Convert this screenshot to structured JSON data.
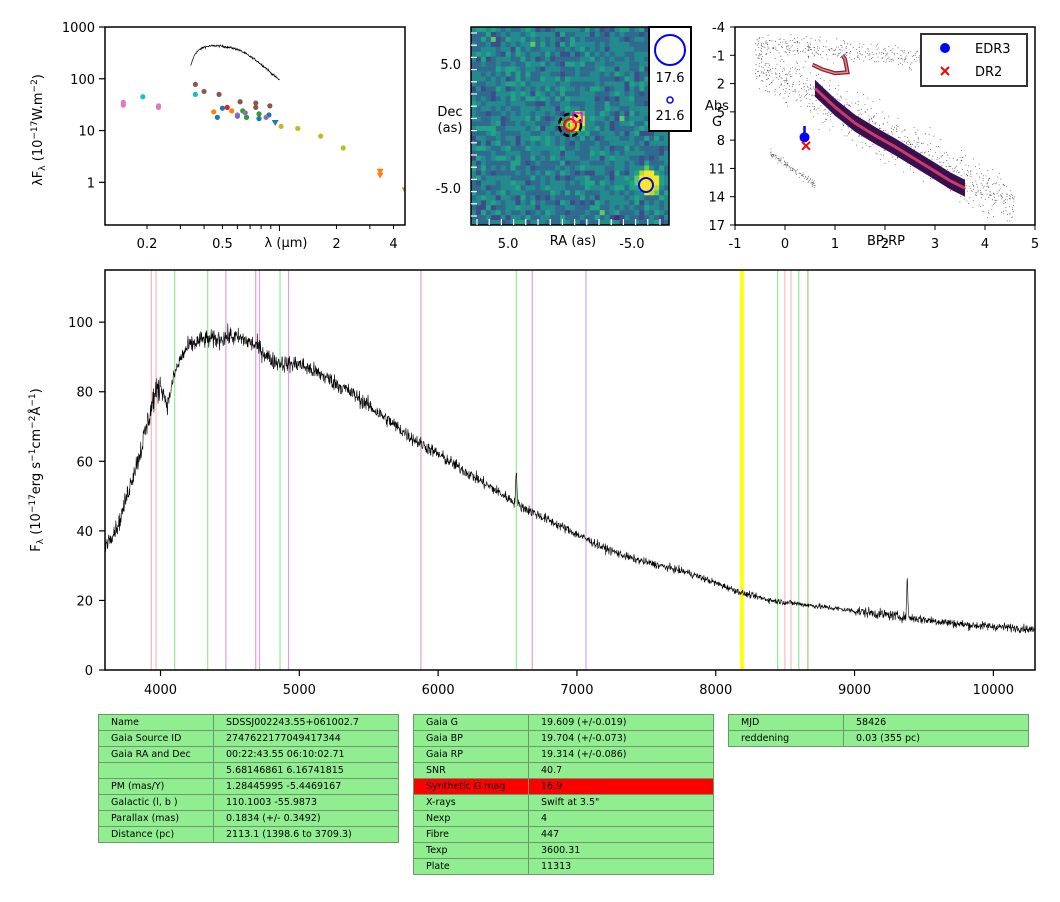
{
  "colors": {
    "emission": "#ffb6c1",
    "balmer": "#90ee90",
    "other": "#dda0dd",
    "telluric": "#ffff00",
    "table_bg": "#90ee90",
    "highlight": "#ff0000"
  },
  "chart_data": [
    {
      "id": "sed",
      "type": "scatter",
      "xscale": "log",
      "yscale": "log",
      "xlabel": "λ (μm)",
      "ylabel": "λF_λ (10^-17 W.m^-2)",
      "xticks": [
        "0.2",
        "0.5",
        "2",
        "4"
      ],
      "yticks": [
        "1",
        "10",
        "100",
        "1000"
      ],
      "xlim": [
        0.12,
        4.6
      ],
      "ylim": [
        0.15,
        1000
      ],
      "model": {
        "color": "#000000",
        "x": [
          0.34,
          0.36,
          0.38,
          0.4,
          0.43,
          0.46,
          0.5,
          0.55,
          0.6,
          0.65,
          0.7,
          0.75,
          0.8,
          0.85,
          0.9,
          0.95,
          1.0
        ],
        "y": [
          175,
          310,
          370,
          410,
          430,
          435,
          425,
          400,
          370,
          320,
          270,
          230,
          190,
          160,
          130,
          110,
          95
        ]
      },
      "points": [
        {
          "x": 0.15,
          "y": 35,
          "c": "#e377c2"
        },
        {
          "x": 0.15,
          "y": 31,
          "c": "#e377c2"
        },
        {
          "x": 0.23,
          "y": 30,
          "c": "#e377c2"
        },
        {
          "x": 0.23,
          "y": 28,
          "c": "#e377c2"
        },
        {
          "x": 0.19,
          "y": 45,
          "c": "#17becf"
        },
        {
          "x": 0.36,
          "y": 50,
          "c": "#17becf"
        },
        {
          "x": 0.36,
          "y": 78,
          "c": "#8c564b"
        },
        {
          "x": 0.4,
          "y": 57,
          "c": "#8c564b"
        },
        {
          "x": 0.48,
          "y": 50,
          "c": "#8c564b"
        },
        {
          "x": 0.62,
          "y": 36,
          "c": "#8c564b"
        },
        {
          "x": 0.75,
          "y": 34,
          "c": "#8c564b"
        },
        {
          "x": 0.75,
          "y": 28,
          "c": "#8c564b"
        },
        {
          "x": 0.89,
          "y": 30,
          "c": "#8c564b"
        },
        {
          "x": 0.45,
          "y": 23,
          "c": "#ff7f0e"
        },
        {
          "x": 0.56,
          "y": 24,
          "c": "#ff7f0e"
        },
        {
          "x": 0.47,
          "y": 18,
          "c": "#1f77b4"
        },
        {
          "x": 0.5,
          "y": 27,
          "c": "#1f77b4"
        },
        {
          "x": 0.6,
          "y": 19,
          "c": "#1f77b4"
        },
        {
          "x": 0.67,
          "y": 18,
          "c": "#1f77b4"
        },
        {
          "x": 0.78,
          "y": 17,
          "c": "#1f77b4"
        },
        {
          "x": 0.88,
          "y": 20,
          "c": "#1f77b4"
        },
        {
          "x": 0.64,
          "y": 24,
          "c": "#2ca02c"
        },
        {
          "x": 0.67,
          "y": 18,
          "c": "#2ca02c"
        },
        {
          "x": 0.78,
          "y": 21,
          "c": "#2ca02c"
        },
        {
          "x": 0.6,
          "y": 20,
          "c": "#9467bd"
        },
        {
          "x": 0.66,
          "y": 22,
          "c": "#9467bd"
        },
        {
          "x": 0.85,
          "y": 18,
          "c": "#9467bd"
        },
        {
          "x": 0.53,
          "y": 28,
          "c": "#d62728"
        },
        {
          "x": 1.02,
          "y": 12,
          "c": "#bcbd22"
        },
        {
          "x": 1.25,
          "y": 11,
          "c": "#bcbd22"
        },
        {
          "x": 1.65,
          "y": 7.8,
          "c": "#bcbd22"
        },
        {
          "x": 2.17,
          "y": 4.6,
          "c": "#bcbd22"
        }
      ],
      "upper_limits": [
        {
          "x": 0.95,
          "y": 14,
          "c": "#1f77b4"
        },
        {
          "x": 3.4,
          "y": 1.6,
          "c": "#ff7f0e"
        },
        {
          "x": 3.4,
          "y": 1.35,
          "c": "#ff7f0e"
        },
        {
          "x": 4.6,
          "y": 0.7,
          "c": "#ff7f0e"
        }
      ]
    },
    {
      "id": "image",
      "type": "image",
      "xlabel": "RA (as)",
      "ylabel": "Dec (as)",
      "xticks": [
        "5.0",
        "-5.0"
      ],
      "yticks": [
        "5.0",
        "-5.0"
      ],
      "xlim": [
        8,
        -8
      ],
      "ylim": [
        -8,
        8
      ],
      "legend": [
        "17.6",
        "21.6"
      ]
    },
    {
      "id": "cmd",
      "type": "scatter",
      "xlabel": "BP-RP",
      "ylabel": "Abs G",
      "xticks": [
        "-1",
        "0",
        "1",
        "2",
        "3",
        "4",
        "5"
      ],
      "yticks": [
        "-4",
        "-1",
        "2",
        "5",
        "8",
        "11",
        "14",
        "17"
      ],
      "xlim": [
        -1,
        5
      ],
      "ylim": [
        17,
        -4
      ],
      "series": [
        {
          "name": "EDR3",
          "x": [
            0.39
          ],
          "y": [
            7.7
          ],
          "yerr": [
            1.2
          ],
          "c": "#0000ff",
          "marker": "o"
        },
        {
          "name": "DR2",
          "x": [
            0.42
          ],
          "y": [
            8.6
          ],
          "c": "#ff0000",
          "marker": "x"
        }
      ]
    },
    {
      "id": "spectrum",
      "type": "line",
      "xlabel": "",
      "ylabel": "F_λ (10^-17 erg s^-1 cm^-2 Å^-1)",
      "xlim": [
        3600,
        10300
      ],
      "ylim": [
        0,
        115
      ],
      "xticks": [
        4000,
        5000,
        6000,
        7000,
        8000,
        9000,
        10000
      ],
      "yticks": [
        0,
        20,
        40,
        60,
        80,
        100
      ],
      "continuum": {
        "x": [
          3600,
          3700,
          3800,
          3850,
          3900,
          3950,
          4000,
          4050,
          4100,
          4150,
          4200,
          4300,
          4400,
          4500,
          4600,
          4700,
          4800,
          4900,
          5000,
          5200,
          5400,
          5600,
          5800,
          6000,
          6200,
          6400,
          6600,
          6800,
          7000,
          7200,
          7400,
          7600,
          7800,
          8000,
          8200,
          8400,
          8600,
          8800,
          9000,
          9200,
          9400,
          9600,
          9800,
          10000,
          10200,
          10300
        ],
        "y": [
          36,
          42,
          56,
          62,
          70,
          78,
          82,
          76,
          85,
          90,
          93,
          95,
          95,
          96,
          95,
          93,
          89,
          88,
          88,
          84,
          79,
          73,
          67,
          62,
          57,
          52,
          47,
          43,
          39,
          35,
          32,
          30,
          28,
          25,
          22,
          20,
          19,
          18,
          17,
          16,
          15,
          14,
          13,
          12.5,
          12,
          11.5
        ]
      },
      "features": [
        {
          "x": 6563,
          "y": 58
        },
        {
          "x": 9380,
          "y": 26
        }
      ],
      "lines": [
        {
          "x": 3934,
          "c": "emission"
        },
        {
          "x": 3968,
          "c": "emission"
        },
        {
          "x": 4102,
          "c": "balmer"
        },
        {
          "x": 4340,
          "c": "balmer"
        },
        {
          "x": 4471,
          "c": "other"
        },
        {
          "x": 4686,
          "c": "other"
        },
        {
          "x": 4713,
          "c": "other"
        },
        {
          "x": 4861,
          "c": "balmer"
        },
        {
          "x": 4922,
          "c": "other"
        },
        {
          "x": 5876,
          "c": "other"
        },
        {
          "x": 6563,
          "c": "balmer"
        },
        {
          "x": 6678,
          "c": "other"
        },
        {
          "x": 7065,
          "c": "other"
        },
        {
          "x": 8183,
          "c": "telluric"
        },
        {
          "x": 8195,
          "c": "telluric"
        },
        {
          "x": 8446,
          "c": "balmer"
        },
        {
          "x": 8498,
          "c": "emission"
        },
        {
          "x": 8542,
          "c": "emission"
        },
        {
          "x": 8598,
          "c": "balmer"
        },
        {
          "x": 8662,
          "c": "emission"
        },
        {
          "x": 8665,
          "c": "balmer"
        }
      ]
    }
  ],
  "tables": {
    "t1": [
      [
        "Name",
        "SDSSJ002243.55+061002.7"
      ],
      [
        "Gaia Source ID",
        "2747622177049417344"
      ],
      [
        "Gaia RA and Dec",
        "00:22:43.55    06:10:02.71"
      ],
      [
        "",
        "5.68146861    6.16741815"
      ],
      [
        "PM (mas/Y)",
        "1.28445995    -5.4469167"
      ],
      [
        "Galactic (l, b )",
        "110.1003    -55.9873"
      ],
      [
        "Parallax (mas)",
        "0.1834 (+/- 0.3492)"
      ],
      [
        "Distance (pc)",
        "2113.1 (1398.6 to 3709.3)"
      ]
    ],
    "t2": [
      [
        "Gaia G",
        "19.609 (+/-0.019)"
      ],
      [
        "Gaia BP",
        "19.704 (+/-0.073)"
      ],
      [
        "Gaia RP",
        "19.314 (+/-0.086)"
      ],
      [
        "SNR",
        "40.7"
      ],
      [
        "Synthetic G mag",
        "16.9"
      ],
      [
        "X-rays",
        "Swift at 3.5\""
      ],
      [
        "Nexp",
        "4"
      ],
      [
        "Fibre",
        "447"
      ],
      [
        "Texp",
        "3600.31"
      ],
      [
        "Plate",
        "11313"
      ]
    ],
    "t3": [
      [
        "MJD",
        "58426"
      ],
      [
        "reddening",
        "0.03 (355 pc)"
      ]
    ],
    "t2_highlight_row": 4
  }
}
